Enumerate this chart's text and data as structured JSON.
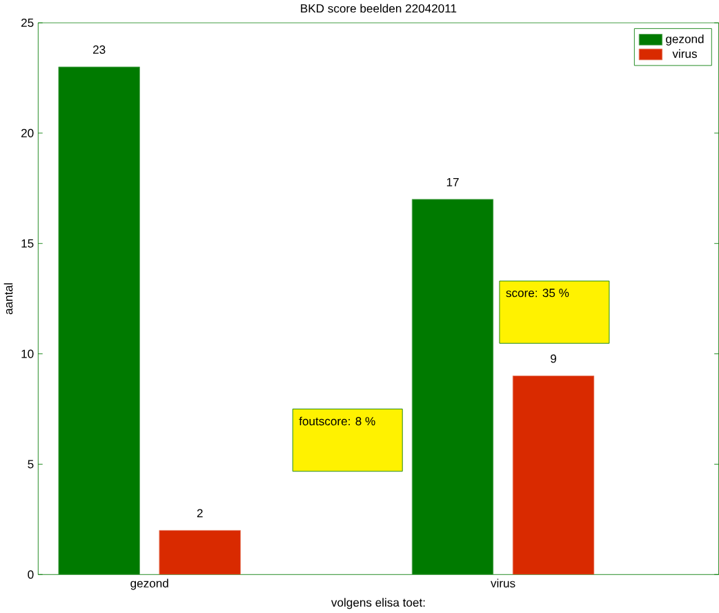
{
  "chart_data": {
    "type": "bar",
    "title": "BKD score beelden 22042011",
    "xlabel": "volgens elisa toet:",
    "ylabel": "aantal",
    "categories": [
      "gezond",
      "virus"
    ],
    "series": [
      {
        "name": "gezond",
        "color": "#007a00",
        "values": [
          23,
          17
        ]
      },
      {
        "name": "virus",
        "color": "#d92a00",
        "values": [
          2,
          9
        ]
      }
    ],
    "ylim": [
      0,
      25
    ],
    "yticks": [
      0,
      5,
      10,
      15,
      20,
      25
    ],
    "data_labels": true,
    "legend": "top right",
    "grid": false,
    "annotations": [
      "foutscore: 8 %",
      "score: 35 %"
    ]
  }
}
